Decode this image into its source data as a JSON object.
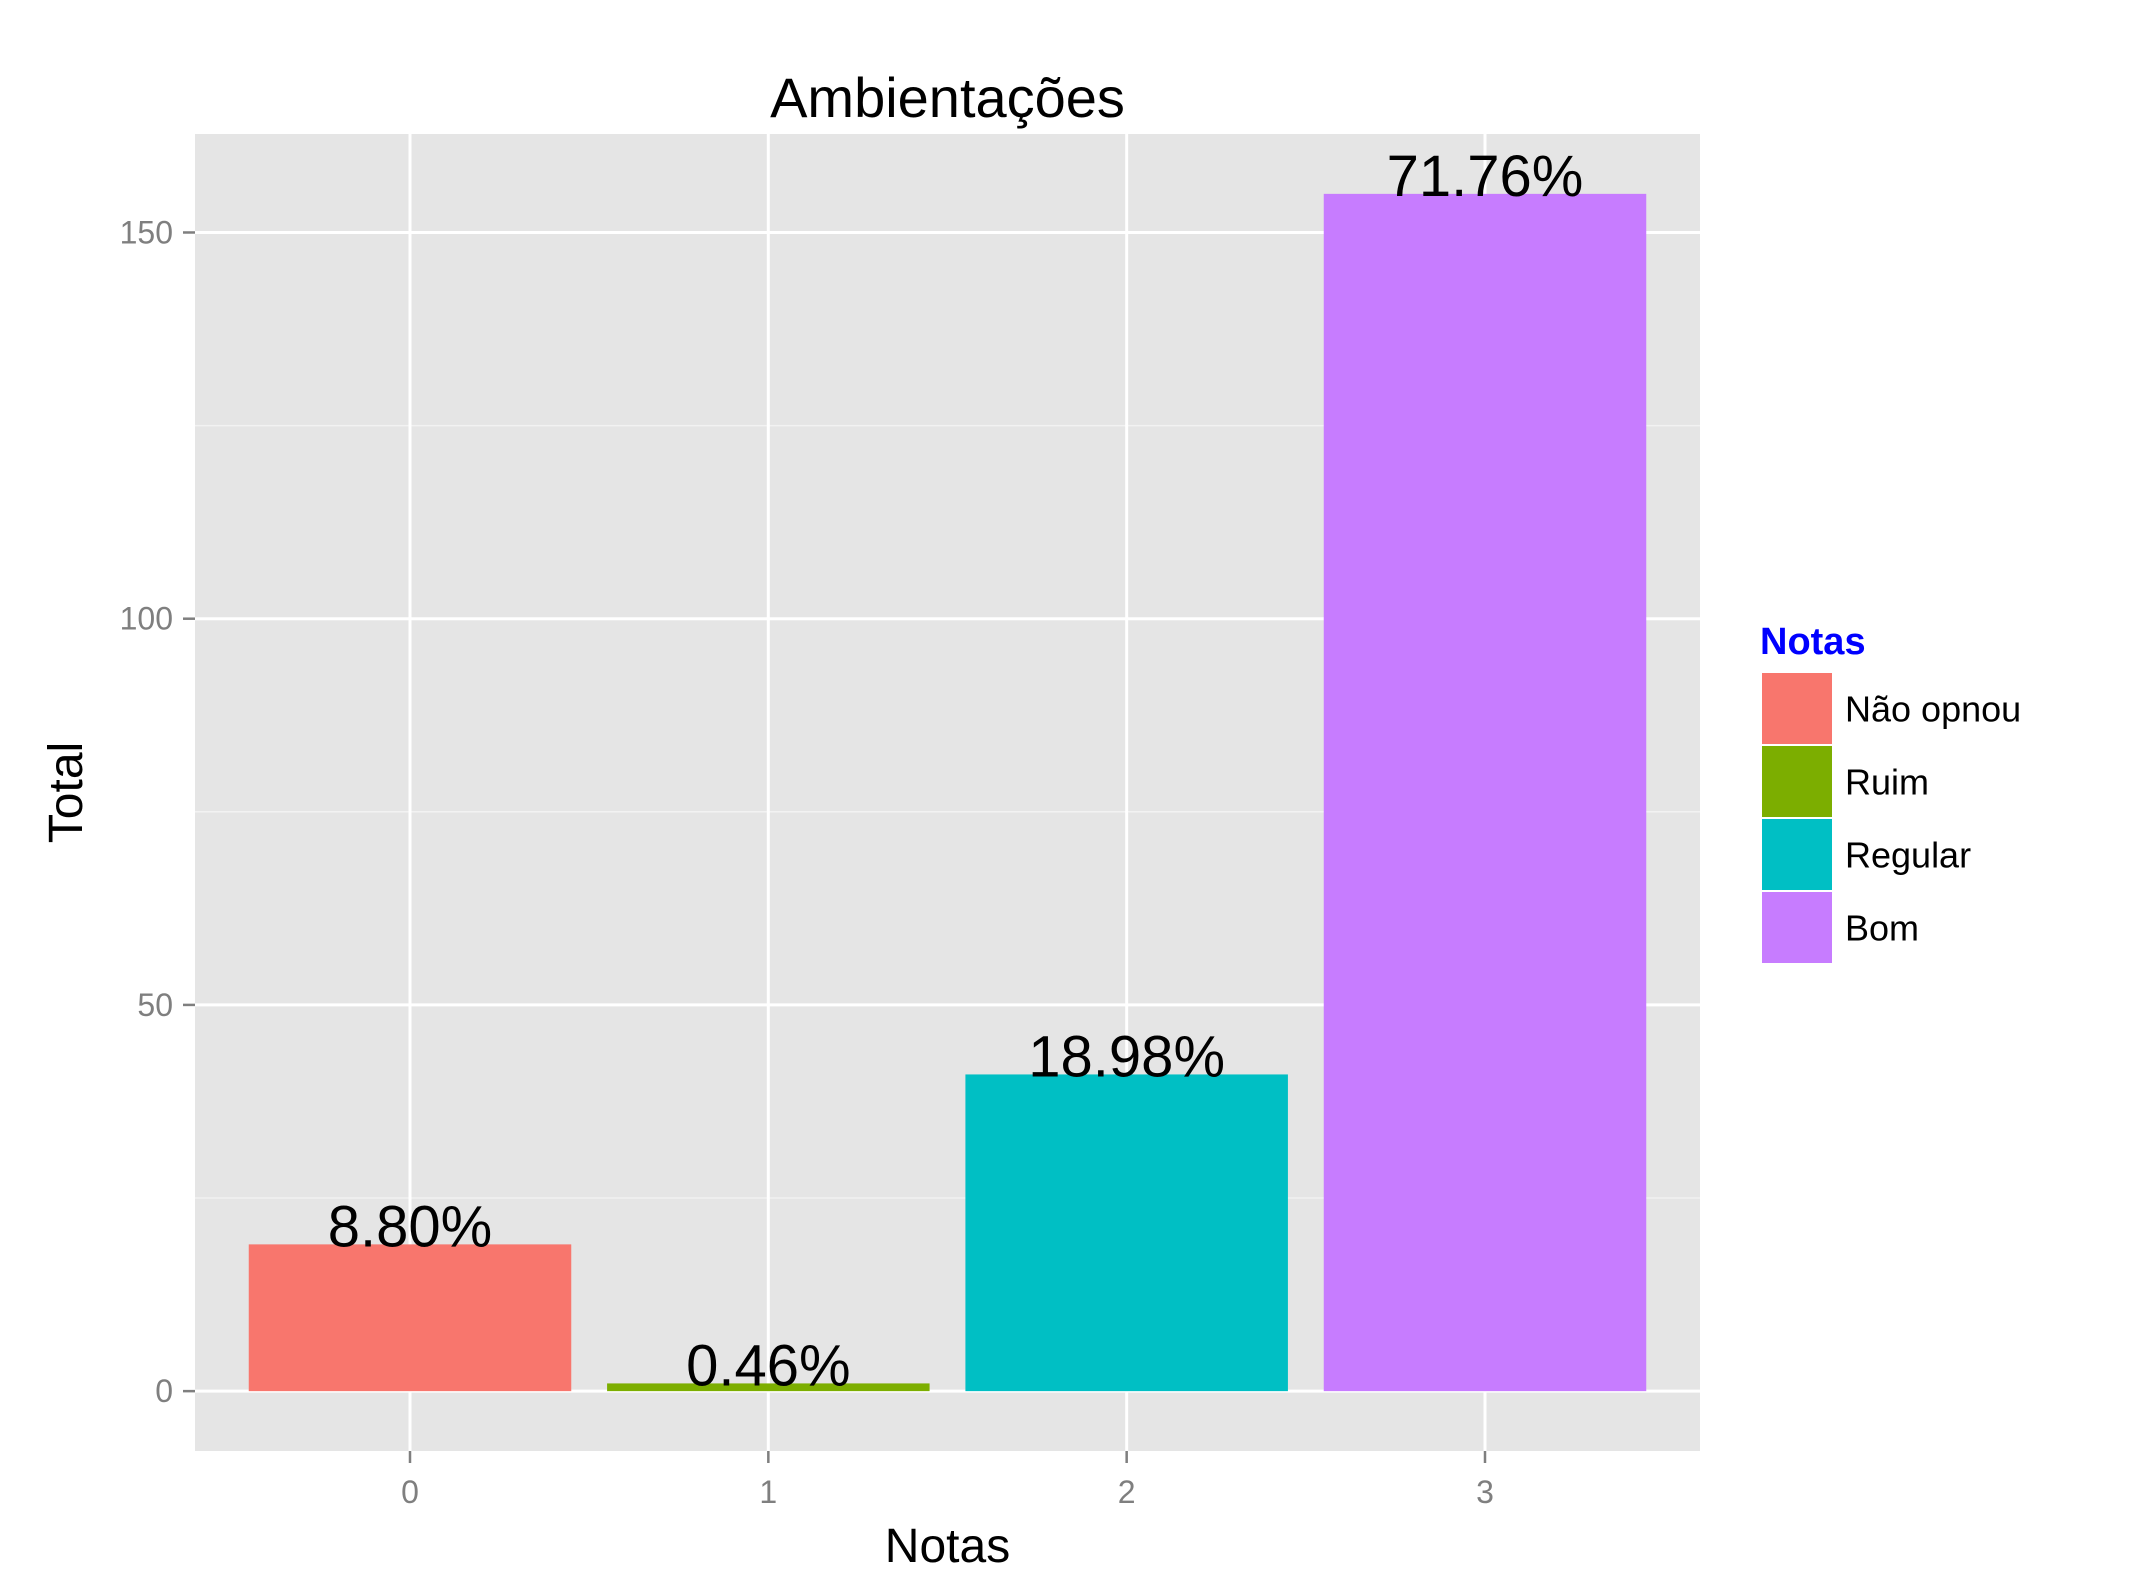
{
  "chart_data": {
    "type": "bar",
    "title": "Ambientações",
    "xlabel": "Notas",
    "ylabel": "Total",
    "categories": [
      "0",
      "1",
      "2",
      "3"
    ],
    "values": [
      19,
      1,
      41,
      155
    ],
    "data_labels": [
      "8.80%",
      "0.46%",
      "18.98%",
      "71.76%"
    ],
    "y_ticks": [
      0,
      50,
      100,
      150
    ],
    "y_tick_labels": [
      "0",
      "50",
      "100",
      "150"
    ],
    "ylim": [
      -7.75,
      162.75
    ],
    "grid": true,
    "legend": {
      "title": "Notas",
      "title_color": "#0000ff",
      "placement": "right",
      "entries": [
        {
          "label": "Não opnou",
          "color": "#f8766d"
        },
        {
          "label": "Ruim",
          "color": "#7cae00"
        },
        {
          "label": "Regular",
          "color": "#00bfc4"
        },
        {
          "label": "Bom",
          "color": "#c77cff"
        }
      ]
    },
    "colors": {
      "panel_background": "#e5e5e5",
      "grid_major": "#ffffff",
      "grid_minor": "#f2f2f2"
    }
  }
}
